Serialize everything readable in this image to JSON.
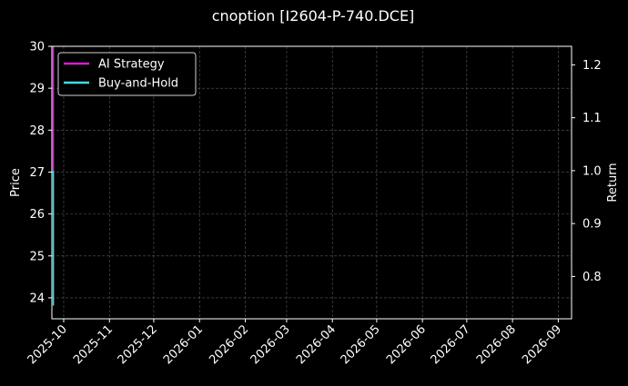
{
  "chart_data": {
    "type": "line",
    "title": "cnoption [I2604-P-740.DCE]",
    "xlabel": "",
    "ylabel": "Price",
    "ylabel_right": "Return",
    "x_range": [
      "2025-09-23",
      "2026-09-10"
    ],
    "x_ticks": [
      "2025-10",
      "2025-11",
      "2025-12",
      "2026-01",
      "2026-02",
      "2026-03",
      "2026-04",
      "2026-05",
      "2026-06",
      "2026-07",
      "2026-08",
      "2026-09"
    ],
    "ylim": [
      23.5,
      30
    ],
    "yticks": [
      24,
      25,
      26,
      27,
      28,
      29,
      30
    ],
    "ylim_right": [
      0.72,
      1.235
    ],
    "yticks_right": [
      0.8,
      0.9,
      1.0,
      1.1,
      1.2
    ],
    "grid": true,
    "legend_position": "top-left",
    "series": [
      {
        "name": "AI Strategy",
        "color": "#d21fd2",
        "axis": "right",
        "x": [
          "2025-09-24",
          "2025-09-24"
        ],
        "y": [
          1.0,
          1.235
        ]
      },
      {
        "name": "Buy-and-Hold",
        "color": "#3fdde5",
        "axis": "right",
        "x": [
          "2025-09-24",
          "2025-09-24"
        ],
        "y": [
          1.0,
          0.745
        ]
      }
    ]
  }
}
